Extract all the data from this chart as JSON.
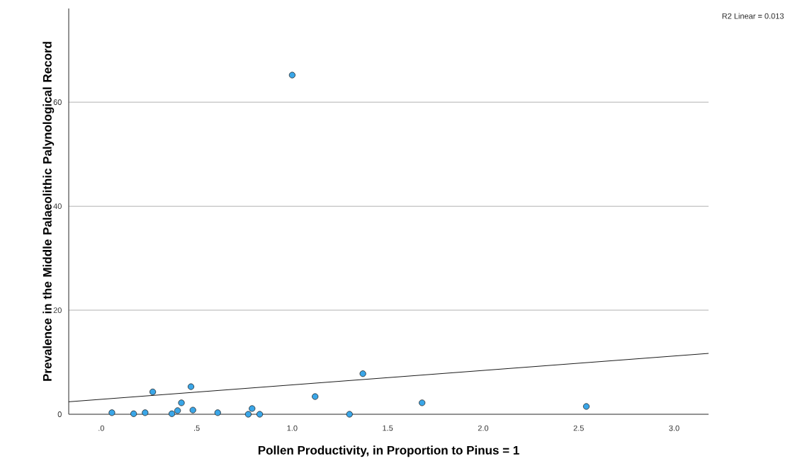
{
  "chart_data": {
    "type": "scatter",
    "xlabel": "Pollen Productivity, in Proportion to Pinus = 1",
    "ylabel": "Prevalence in the Middle Palaeolithic Palynological Record",
    "annotations": [
      "R2 Linear =  0.013"
    ],
    "series": [
      {
        "color": "#3aa6e8",
        "marker": "circle",
        "x": [
          0.056,
          0.17,
          0.23,
          0.27,
          0.37,
          0.4,
          0.42,
          0.47,
          0.48,
          0.61,
          0.77,
          0.79,
          0.83,
          1.0,
          1.12,
          1.3,
          1.37,
          1.68,
          2.54
        ],
        "values": [
          0.3,
          0.1,
          0.3,
          4.3,
          0.1,
          0.7,
          2.2,
          5.3,
          0.8,
          0.3,
          0.0,
          1.1,
          0.0,
          65.2,
          3.4,
          0.0,
          7.8,
          2.2,
          1.5
        ]
      },
      {
        "type": "line",
        "color": "#000000",
        "marker": "none",
        "x": [
          -0.17,
          3.18
        ],
        "values": [
          2.4,
          11.7
        ]
      }
    ],
    "xlim": [
      -0.17,
      3.18
    ],
    "ylim": [
      0,
      78
    ],
    "xticks": [
      {
        "value": 0,
        "label": ".0"
      },
      {
        "value": 0.5,
        "label": ".5"
      },
      {
        "value": 1,
        "label": "1.0"
      },
      {
        "value": 1.5,
        "label": "1.5"
      },
      {
        "value": 2,
        "label": "2.0"
      },
      {
        "value": 2.5,
        "label": "2.5"
      },
      {
        "value": 3,
        "label": "3.0"
      }
    ],
    "yticks": [
      0,
      20,
      40,
      60
    ],
    "grid": "y"
  }
}
